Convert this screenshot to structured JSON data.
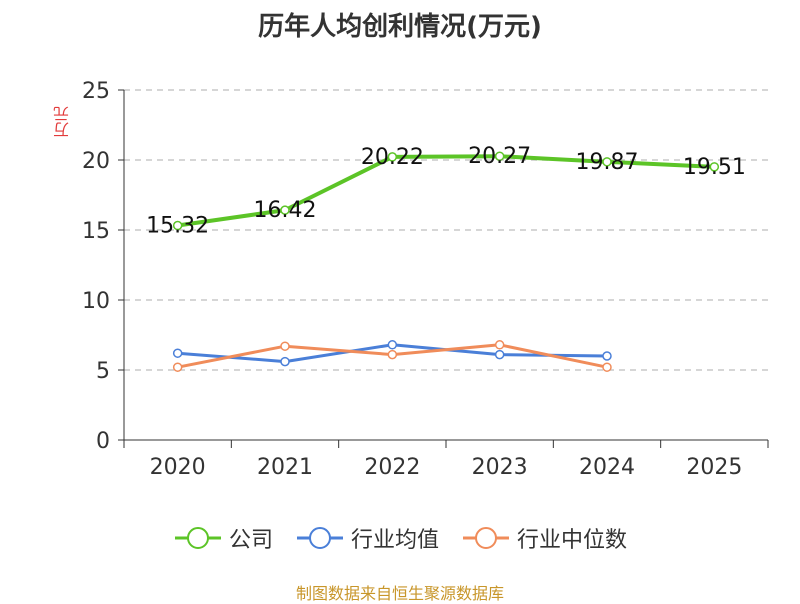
{
  "title": "历年人均创利情况(万元)",
  "y_unit": "万元",
  "source": "制图数据来自恒生聚源数据库",
  "colors": {
    "company": "#5cc427",
    "industry_avg": "#4a7fd8",
    "industry_median": "#f08c5a",
    "grid": "#c8c8c8",
    "axis": "#333333",
    "title": "#333333",
    "unit": "#e23b3b",
    "source": "#c8962a"
  },
  "chart_data": {
    "type": "line",
    "title": "历年人均创利情况(万元)",
    "ylabel": "万元",
    "xlabel": "",
    "categories": [
      "2020",
      "2021",
      "2022",
      "2023",
      "2024",
      "2025"
    ],
    "ylim": [
      0,
      25
    ],
    "yticks": [
      0,
      5,
      10,
      15,
      20,
      25
    ],
    "grid": true,
    "legend_position": "bottom",
    "series": [
      {
        "name": "公司",
        "color": "#5cc427",
        "values": [
          15.32,
          16.42,
          20.22,
          20.27,
          19.87,
          19.51
        ],
        "data_labels": [
          "15.32",
          "16.42",
          "20.22",
          "20.27",
          "19.87",
          "19.51"
        ]
      },
      {
        "name": "行业均值",
        "color": "#4a7fd8",
        "values": [
          6.2,
          5.6,
          6.8,
          6.1,
          6.0,
          null
        ],
        "data_labels": []
      },
      {
        "name": "行业中位数",
        "color": "#f08c5a",
        "values": [
          5.2,
          6.7,
          6.1,
          6.8,
          5.2,
          null
        ],
        "data_labels": []
      }
    ]
  }
}
